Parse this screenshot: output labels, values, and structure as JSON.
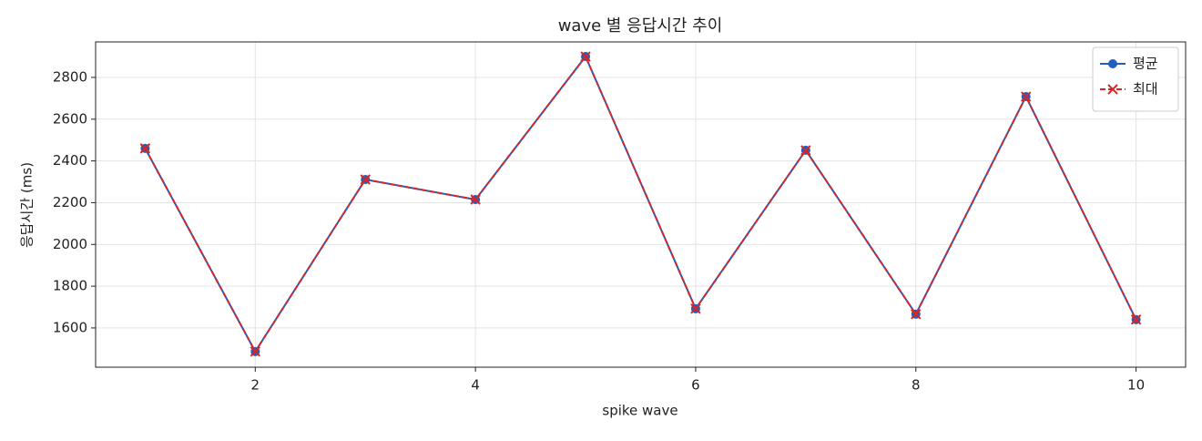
{
  "chart_data": {
    "type": "line",
    "title": "wave 별 응답시간 추이",
    "xlabel": "spike wave",
    "ylabel": "응답시간 (ms)",
    "x": [
      1,
      2,
      3,
      4,
      5,
      6,
      7,
      8,
      9,
      10
    ],
    "series": [
      {
        "name": "평균",
        "color": "#1f5fbf",
        "marker": "circle",
        "dash": false,
        "values": [
          2460,
          1487,
          2311,
          2215,
          2900,
          1692,
          2451,
          1666,
          2708,
          1640
        ]
      },
      {
        "name": "최대",
        "color": "#d62728",
        "marker": "x",
        "dash": true,
        "values": [
          2460,
          1487,
          2311,
          2215,
          2900,
          1692,
          2451,
          1666,
          2708,
          1640
        ]
      }
    ],
    "xlim": [
      0.55,
      10.45
    ],
    "xticks": [
      2,
      4,
      6,
      8,
      10
    ],
    "ylim": [
      1412,
      2970
    ],
    "yticks": [
      1600,
      1800,
      2000,
      2200,
      2400,
      2600,
      2800
    ],
    "grid": true,
    "legend": "upper right"
  }
}
